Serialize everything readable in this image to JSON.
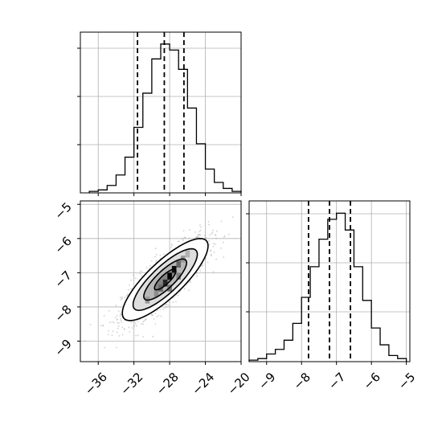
{
  "chart_data": {
    "type": "corner",
    "params": [
      "",
      ""
    ],
    "histogram_1": {
      "bins": [
        -37,
        -36,
        -35,
        -34,
        -33,
        -32,
        -31,
        -30,
        -29,
        -28,
        -27,
        -26,
        -25,
        -24,
        -23,
        -22,
        -21,
        -20
      ],
      "counts": [
        1,
        2,
        5,
        12,
        24,
        44,
        67,
        90,
        100,
        96,
        83,
        57,
        33,
        16,
        7,
        3,
        1
      ],
      "ylim": [
        0,
        108
      ],
      "quantiles": [
        -31.6,
        -28.6,
        -26.4
      ],
      "xlim": [
        -38,
        -20
      ],
      "ticks": [
        -36,
        -32,
        -28,
        -24,
        -20
      ],
      "tick_labels": [
        "−36",
        "−32",
        "−28",
        "−24",
        "−20"
      ]
    },
    "histogram_2": {
      "bins": [
        -9.5,
        -9.25,
        -9.0,
        -8.75,
        -8.5,
        -8.25,
        -8.0,
        -7.75,
        -7.5,
        -7.25,
        -7.0,
        -6.75,
        -6.5,
        -6.25,
        -6.0,
        -5.75,
        -5.5,
        -5.25,
        -5.0
      ],
      "counts": [
        1,
        2,
        5,
        8,
        14,
        25,
        42,
        62,
        80,
        93,
        97,
        86,
        62,
        40,
        22,
        11,
        4,
        2
      ],
      "ylim": [
        0,
        105
      ],
      "quantiles": [
        -7.8,
        -7.2,
        -6.6
      ],
      "xlim": [
        -9.5,
        -4.9
      ],
      "ticks": [
        -9,
        -8,
        -7,
        -6,
        -5
      ],
      "tick_labels": [
        "−9",
        "−8",
        "−7",
        "−6",
        "−5"
      ]
    },
    "scatter_2d": {
      "xlim": [
        -38,
        -20
      ],
      "ylim": [
        -9.6,
        -4.9
      ],
      "x_ticks": [
        -36,
        -32,
        -28,
        -24,
        -20
      ],
      "x_tick_labels": [
        "−36",
        "−32",
        "−28",
        "−24",
        "−20"
      ],
      "y_ticks": [
        -9,
        -8,
        -7,
        -6,
        -5
      ],
      "y_tick_labels": [
        "−9",
        "−8",
        "−7",
        "−6",
        "−5"
      ],
      "mean": [
        -28.5,
        -7.2
      ],
      "std": [
        2.4,
        0.6
      ],
      "correlation": 0.82,
      "density_cells": [
        {
          "x": -28.0,
          "y": -7.1,
          "level": 1.0
        },
        {
          "x": -27.5,
          "y": -6.9,
          "level": 0.95
        },
        {
          "x": -28.5,
          "y": -7.3,
          "level": 0.85
        },
        {
          "x": -29.0,
          "y": -7.45,
          "level": 0.6
        },
        {
          "x": -27.0,
          "y": -6.75,
          "level": 0.6
        },
        {
          "x": -29.5,
          "y": -7.6,
          "level": 0.45
        },
        {
          "x": -26.5,
          "y": -6.6,
          "level": 0.4
        },
        {
          "x": -30.5,
          "y": -7.8,
          "level": 0.4
        },
        {
          "x": -26.0,
          "y": -6.45,
          "level": 0.3
        },
        {
          "x": -28.0,
          "y": -7.45,
          "level": 0.55
        },
        {
          "x": -27.0,
          "y": -7.1,
          "level": 0.5
        }
      ],
      "contour_sigmas": [
        0.5,
        1.0,
        1.5,
        2.0
      ]
    }
  }
}
